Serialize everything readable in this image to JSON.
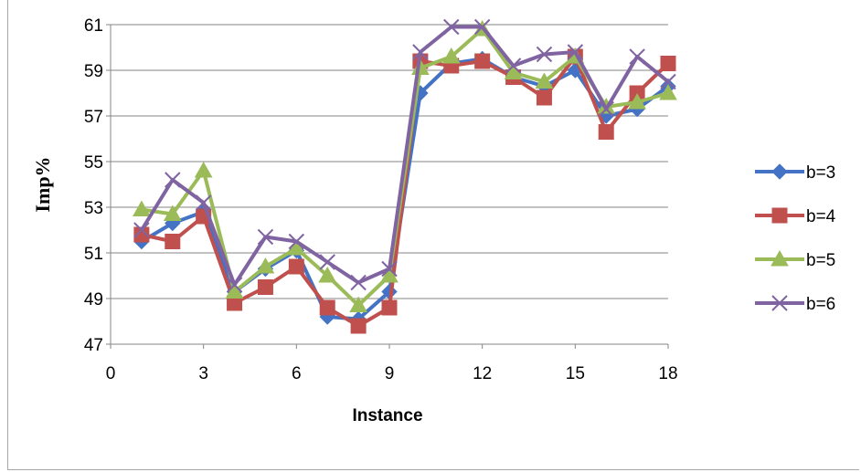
{
  "chart_data": {
    "type": "line",
    "title": "",
    "xlabel": "Instance",
    "ylabel": "Imp%",
    "xlim": [
      0,
      18
    ],
    "ylim": [
      47,
      61
    ],
    "xticks": [
      0,
      3,
      6,
      9,
      12,
      15,
      18
    ],
    "yticks": [
      47,
      49,
      51,
      53,
      55,
      57,
      59,
      61
    ],
    "grid": "horizontal",
    "legend_position": "right",
    "x": [
      1,
      2,
      3,
      4,
      5,
      6,
      7,
      8,
      9,
      10,
      11,
      12,
      13,
      14,
      15,
      16,
      17,
      18
    ],
    "series": [
      {
        "name": "b=3",
        "color": "#4472c4",
        "marker": "diamond",
        "values": [
          51.5,
          52.3,
          52.8,
          49.3,
          50.3,
          51.1,
          48.2,
          48.1,
          49.3,
          58.0,
          59.3,
          59.5,
          58.7,
          58.3,
          59.0,
          57.0,
          57.3,
          58.3
        ]
      },
      {
        "name": "b=4",
        "color": "#c0504d",
        "marker": "square",
        "values": [
          51.8,
          51.5,
          52.6,
          48.8,
          49.5,
          50.4,
          48.6,
          47.8,
          48.6,
          59.4,
          59.2,
          59.4,
          58.7,
          57.8,
          59.6,
          56.3,
          58.0,
          59.3
        ]
      },
      {
        "name": "b=5",
        "color": "#9bbb59",
        "marker": "triangle",
        "values": [
          52.9,
          52.7,
          54.6,
          49.3,
          50.4,
          51.2,
          50.0,
          48.7,
          50.0,
          59.1,
          59.6,
          60.8,
          58.9,
          58.5,
          59.6,
          57.4,
          57.6,
          58.0
        ]
      },
      {
        "name": "b=6",
        "color": "#8064a2",
        "marker": "x",
        "values": [
          52.0,
          54.2,
          53.2,
          49.6,
          51.7,
          51.5,
          50.6,
          49.7,
          50.3,
          59.8,
          60.9,
          60.9,
          59.2,
          59.7,
          59.8,
          57.3,
          59.6,
          58.5
        ]
      }
    ]
  }
}
